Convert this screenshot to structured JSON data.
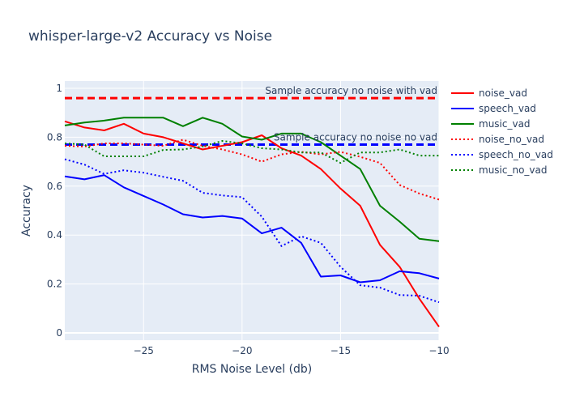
{
  "chart_data": {
    "type": "line",
    "title": "whisper-large-v2 Accuracy vs Noise",
    "xlabel": "RMS Noise Level (db)",
    "ylabel": "Accuracy",
    "xlim": [
      -29,
      -10
    ],
    "ylim": [
      -0.03,
      1.03
    ],
    "x_ticks": [
      -25,
      -20,
      -15,
      -10
    ],
    "x_tick_labels": [
      "−25",
      "−20",
      "−15",
      "−10"
    ],
    "y_ticks": [
      0,
      0.2,
      0.4,
      0.6,
      0.8,
      1
    ],
    "y_tick_labels": [
      "0",
      "0.2",
      "0.4",
      "0.6",
      "0.8",
      "1"
    ],
    "grid": true,
    "legend_position": "right",
    "x": [
      -29,
      -28,
      -27,
      -26,
      -25,
      -24,
      -23,
      -22,
      -21,
      -20,
      -19,
      -18,
      -17,
      -16,
      -15,
      -14,
      -13,
      -12,
      -11,
      -10
    ],
    "series": [
      {
        "name": "noise_vad",
        "color": "#ff0000",
        "dash": "solid",
        "values": [
          0.865,
          0.84,
          0.828,
          0.855,
          0.815,
          0.8,
          0.775,
          0.75,
          0.765,
          0.78,
          0.808,
          0.755,
          0.725,
          0.67,
          0.59,
          0.52,
          0.36,
          0.27,
          0.14,
          0.025
        ]
      },
      {
        "name": "speech_vad",
        "color": "#0000ff",
        "dash": "solid",
        "values": [
          0.64,
          0.628,
          0.645,
          0.595,
          0.56,
          0.525,
          0.485,
          0.472,
          0.478,
          0.468,
          0.407,
          0.43,
          0.368,
          0.23,
          0.235,
          0.207,
          0.215,
          0.252,
          0.244,
          0.222
        ]
      },
      {
        "name": "music_vad",
        "color": "#008000",
        "dash": "solid",
        "values": [
          0.848,
          0.86,
          0.868,
          0.88,
          0.88,
          0.88,
          0.845,
          0.88,
          0.855,
          0.803,
          0.79,
          0.815,
          0.815,
          0.78,
          0.725,
          0.67,
          0.52,
          0.455,
          0.385,
          0.375
        ]
      },
      {
        "name": "noise_no_vad",
        "color": "#ff0000",
        "dash": "dot",
        "values": [
          0.765,
          0.762,
          0.775,
          0.775,
          0.77,
          0.765,
          0.79,
          0.765,
          0.75,
          0.73,
          0.7,
          0.73,
          0.74,
          0.73,
          0.74,
          0.72,
          0.695,
          0.605,
          0.57,
          0.545
        ]
      },
      {
        "name": "speech_no_vad",
        "color": "#0000ff",
        "dash": "dot",
        "values": [
          0.71,
          0.688,
          0.65,
          0.665,
          0.655,
          0.638,
          0.622,
          0.573,
          0.562,
          0.555,
          0.475,
          0.355,
          0.395,
          0.368,
          0.27,
          0.195,
          0.185,
          0.155,
          0.152,
          0.125
        ]
      },
      {
        "name": "music_no_vad",
        "color": "#008000",
        "dash": "dot",
        "values": [
          0.775,
          0.77,
          0.722,
          0.722,
          0.722,
          0.748,
          0.75,
          0.762,
          0.785,
          0.775,
          0.755,
          0.75,
          0.738,
          0.738,
          0.695,
          0.738,
          0.738,
          0.75,
          0.725,
          0.725
        ]
      }
    ],
    "reference_lines": [
      {
        "y": 0.96,
        "color": "#ff0000",
        "dash": "dash",
        "label": "Sample accuracy no noise with vad"
      },
      {
        "y": 0.77,
        "color": "#0000ff",
        "dash": "dash",
        "label": "Sample accuracy no noise no vad"
      }
    ],
    "colors": {
      "plot_bg": "#e5ecf6",
      "grid": "#ffffff",
      "text": "#2a3f5f"
    }
  }
}
